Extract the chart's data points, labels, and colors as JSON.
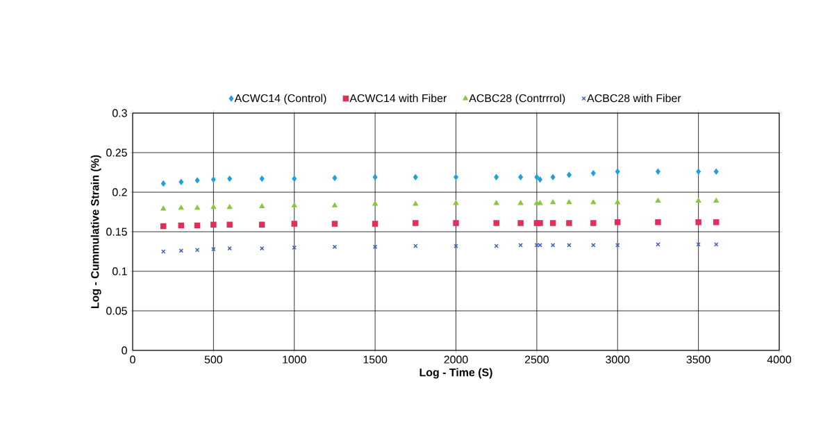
{
  "chart_data": {
    "type": "scatter",
    "xlabel": "Log - Time (S)",
    "ylabel": "Log  - Cummulative Strain (%)",
    "x": [
      190,
      300,
      400,
      500,
      600,
      800,
      1000,
      1250,
      1500,
      1750,
      2000,
      2250,
      2400,
      2500,
      2520,
      2600,
      2700,
      2850,
      3000,
      3250,
      3500,
      3610
    ],
    "series": [
      {
        "name": "ACWC14 (Control)",
        "color": "#1fa0e0",
        "marker": "diamond",
        "values": [
          0.211,
          0.213,
          0.215,
          0.216,
          0.217,
          0.217,
          0.217,
          0.218,
          0.219,
          0.219,
          0.219,
          0.219,
          0.219,
          0.219,
          0.216,
          0.219,
          0.222,
          0.224,
          0.226,
          0.226,
          0.226,
          0.226
        ]
      },
      {
        "name": "ACWC14 with Fiber",
        "color": "#e0305a",
        "marker": "square",
        "values": [
          0.157,
          0.158,
          0.158,
          0.159,
          0.159,
          0.159,
          0.16,
          0.16,
          0.16,
          0.161,
          0.161,
          0.161,
          0.161,
          0.161,
          0.161,
          0.161,
          0.161,
          0.161,
          0.162,
          0.162,
          0.162,
          0.162
        ]
      },
      {
        "name": "ACBC28 (Contrrrol)",
        "color": "#8cc63f",
        "marker": "triangle",
        "values": [
          0.179,
          0.18,
          0.18,
          0.181,
          0.181,
          0.182,
          0.183,
          0.183,
          0.185,
          0.185,
          0.186,
          0.186,
          0.186,
          0.186,
          0.186,
          0.187,
          0.187,
          0.187,
          0.187,
          0.189,
          0.189,
          0.189
        ]
      },
      {
        "name": "ACBC28  with Fiber",
        "color": "#3f5fbf",
        "marker": "cross",
        "values": [
          0.125,
          0.126,
          0.127,
          0.128,
          0.129,
          0.129,
          0.13,
          0.131,
          0.131,
          0.132,
          0.132,
          0.132,
          0.133,
          0.133,
          0.133,
          0.133,
          0.133,
          0.133,
          0.133,
          0.134,
          0.134,
          0.134
        ]
      }
    ],
    "xlim": [
      0,
      4000
    ],
    "xticks": [
      0,
      500,
      1000,
      1500,
      2000,
      2500,
      3000,
      3500,
      4000
    ],
    "ylim": [
      0,
      0.3
    ],
    "yticks": [
      0,
      0.05,
      0.1,
      0.15,
      0.2,
      0.25,
      0.3
    ],
    "grid": true,
    "legend": "top"
  }
}
